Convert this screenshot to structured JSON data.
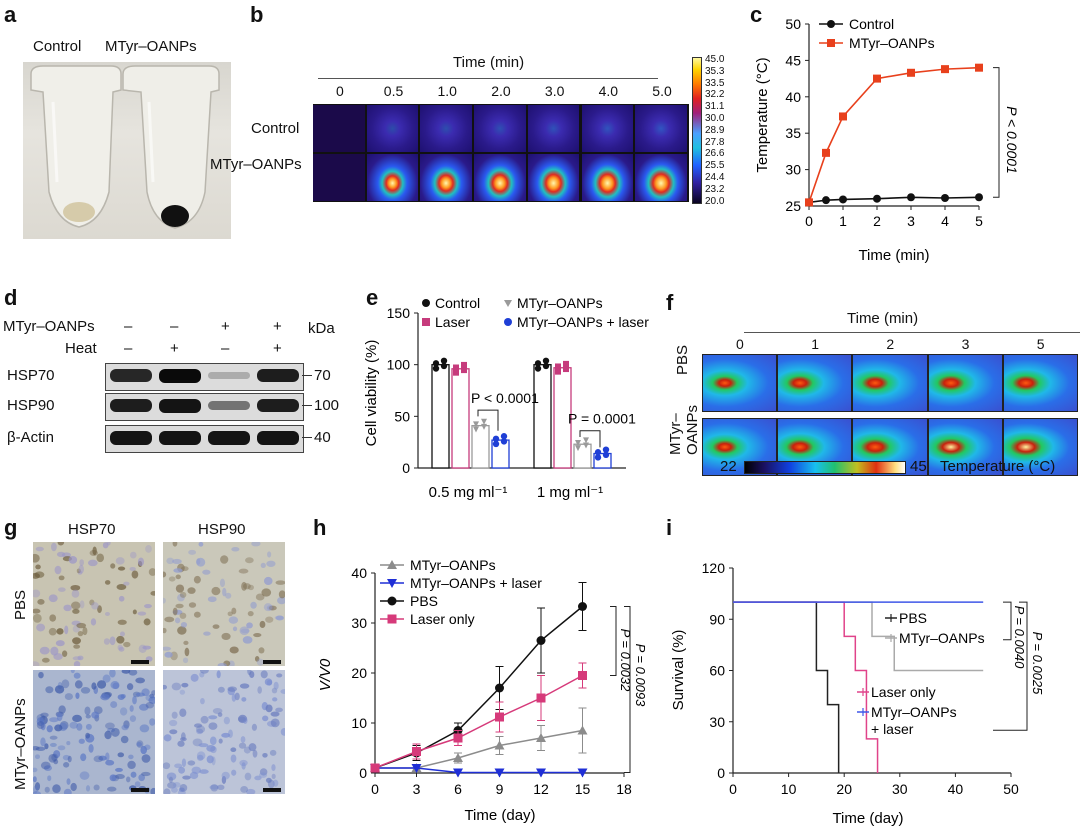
{
  "panel_labels": {
    "a": "a",
    "b": "b",
    "c": "c",
    "d": "d",
    "e": "e",
    "f": "f",
    "g": "g",
    "h": "h",
    "i": "i"
  },
  "panel_a": {
    "control_label": "Control",
    "mtyr_label": "MTyr–OANPs"
  },
  "panel_b": {
    "time_title": "Time (min)",
    "times": [
      "0",
      "0.5",
      "1.0",
      "2.0",
      "3.0",
      "4.0",
      "5.0"
    ],
    "row_labels": [
      "Control",
      "MTyr–OANPs"
    ],
    "scale_ticks": [
      "45.0",
      "35.3",
      "33.5",
      "32.2",
      "31.1",
      "30.0",
      "28.9",
      "27.8",
      "26.6",
      "25.5",
      "24.4",
      "23.2",
      "20.0"
    ],
    "control_intensity": [
      0.05,
      0.35,
      0.4,
      0.45,
      0.5,
      0.55,
      0.6
    ],
    "mtyr_intensity": [
      0.05,
      0.55,
      0.7,
      0.8,
      0.9,
      0.95,
      1.0
    ]
  },
  "panel_d": {
    "row1_label": "MTyr–OANPs",
    "row2_label": "Heat",
    "row1_signs": [
      "–",
      "–",
      "+",
      "+"
    ],
    "row2_signs": [
      "–",
      "+",
      "–",
      "+"
    ],
    "kda_label": "kDa",
    "blots": [
      {
        "name": "HSP70",
        "kda": "70",
        "intensity": [
          0.85,
          1.0,
          0.15,
          0.9
        ]
      },
      {
        "name": "HSP90",
        "kda": "100",
        "intensity": [
          0.9,
          0.95,
          0.45,
          0.9
        ]
      },
      {
        "name": "β-Actin",
        "kda": "40",
        "intensity": [
          0.95,
          0.95,
          0.95,
          0.95
        ]
      }
    ]
  },
  "panel_f": {
    "time_title": "Time (min)",
    "times": [
      "0",
      "1",
      "2",
      "3",
      "5"
    ],
    "row_labels": [
      "PBS",
      "MTyr–\nOANPs"
    ],
    "row_label_line1": "PBS",
    "row_label_line2a": "MTyr–",
    "row_label_line2b": "OANPs",
    "scale_min": "22",
    "scale_max": "45",
    "scale_title": "Temperature (°C)",
    "pbs_intensity": [
      0.35,
      0.5,
      0.55,
      0.6,
      0.6
    ],
    "mtyr_intensity": [
      0.4,
      0.6,
      0.75,
      0.9,
      1.0
    ]
  },
  "panel_g": {
    "col_labels": [
      "HSP70",
      "HSP90"
    ],
    "row_labels": [
      "PBS",
      "MTyr–OANPs"
    ]
  },
  "chart_data": [
    {
      "id": "c",
      "type": "line",
      "xlabel": "Time (min)",
      "ylabel": "Temperature (°C)",
      "xlim": [
        0,
        5
      ],
      "ylim": [
        25,
        50
      ],
      "xticks": [
        "0",
        "1",
        "2",
        "3",
        "4",
        "5"
      ],
      "yticks": [
        "25",
        "30",
        "35",
        "40",
        "45",
        "50"
      ],
      "x": [
        0,
        0.5,
        1,
        2,
        3,
        4,
        5
      ],
      "series": [
        {
          "name": "Control",
          "color": "#111111",
          "marker": "circle",
          "values": [
            25.5,
            25.8,
            25.9,
            26.0,
            26.2,
            26.1,
            26.2
          ]
        },
        {
          "name": "MTyr–OANPs",
          "color": "#e8401c",
          "marker": "square",
          "values": [
            25.5,
            32.3,
            37.3,
            42.5,
            43.3,
            43.8,
            44.0
          ]
        }
      ],
      "annotation": "P < 0.0001"
    },
    {
      "id": "e",
      "type": "bar",
      "ylabel": "Cell viability (%)",
      "ylim": [
        0,
        150
      ],
      "yticks": [
        "0",
        "50",
        "100",
        "150"
      ],
      "categories": [
        "0.5 mg ml⁻¹",
        "1 mg ml⁻¹"
      ],
      "series": [
        {
          "name": "Control",
          "color": "#111111",
          "values": [
            100,
            100
          ]
        },
        {
          "name": "Laser",
          "color": "#c63b7c",
          "values": [
            96,
            97
          ]
        },
        {
          "name": "MTyr–OANPs",
          "color": "#9a9a9a",
          "values": [
            41,
            23
          ]
        },
        {
          "name": "MTyr–OANPs + laser",
          "color": "#1f3fd6",
          "values": [
            27,
            14
          ]
        }
      ],
      "annotations": [
        "P < 0.0001",
        "P = 0.0001"
      ]
    },
    {
      "id": "h",
      "type": "line",
      "xlabel": "Time (day)",
      "ylabel": "V/V0",
      "xlim": [
        0,
        18
      ],
      "ylim": [
        0,
        40
      ],
      "xticks": [
        "0",
        "3",
        "6",
        "9",
        "12",
        "15",
        "18"
      ],
      "yticks": [
        "0",
        "10",
        "20",
        "30",
        "40"
      ],
      "x": [
        0,
        3,
        6,
        9,
        12,
        15
      ],
      "series": [
        {
          "name": "MTyr–OANPs",
          "color": "#8c8c8c",
          "marker": "triangle-up",
          "values": [
            1,
            1,
            3,
            5.5,
            7,
            8.5
          ],
          "err": [
            0,
            0.5,
            1,
            1.8,
            2.5,
            4.5
          ]
        },
        {
          "name": "MTyr–OANPs + laser",
          "color": "#1f2fd6",
          "marker": "triangle-down",
          "values": [
            1,
            1,
            0.1,
            0.1,
            0.1,
            0.1
          ],
          "err": [
            0,
            0,
            0,
            0,
            0,
            0
          ]
        },
        {
          "name": "PBS",
          "color": "#111111",
          "marker": "circle",
          "values": [
            1,
            4,
            8.5,
            17,
            26.5,
            33.3
          ],
          "err": [
            0,
            1.5,
            1.5,
            4.3,
            6.5,
            4.8
          ]
        },
        {
          "name": "Laser only",
          "color": "#d63a7a",
          "marker": "square",
          "values": [
            1,
            4.3,
            7,
            11.2,
            15,
            19.5
          ],
          "err": [
            0,
            1.5,
            1.5,
            3,
            4.5,
            2.5
          ]
        }
      ],
      "annotations": [
        "P = 0.0032",
        "P = 0.0093"
      ]
    },
    {
      "id": "i",
      "type": "line",
      "xlabel": "Time (day)",
      "ylabel": "Survival (%)",
      "xlim": [
        0,
        50
      ],
      "ylim": [
        0,
        120
      ],
      "xticks": [
        "0",
        "10",
        "20",
        "30",
        "40",
        "50"
      ],
      "yticks": [
        "0",
        "30",
        "60",
        "90",
        "120"
      ],
      "series": [
        {
          "name": "PBS",
          "color": "#222222",
          "steps": [
            [
              0,
              100
            ],
            [
              15,
              100
            ],
            [
              15,
              60
            ],
            [
              17,
              60
            ],
            [
              17,
              40
            ],
            [
              19,
              40
            ],
            [
              19,
              0
            ]
          ]
        },
        {
          "name": "MTyr–OANPs",
          "color": "#aaaaaa",
          "steps": [
            [
              0,
              100
            ],
            [
              25,
              100
            ],
            [
              25,
              80
            ],
            [
              29,
              80
            ],
            [
              29,
              60
            ],
            [
              45,
              60
            ]
          ]
        },
        {
          "name": "Laser only",
          "color": "#e0438a",
          "steps": [
            [
              0,
              100
            ],
            [
              20,
              100
            ],
            [
              20,
              80
            ],
            [
              22,
              80
            ],
            [
              22,
              60
            ],
            [
              24,
              60
            ],
            [
              24,
              20
            ],
            [
              26,
              20
            ],
            [
              26,
              0
            ]
          ]
        },
        {
          "name": "MTyr–OANPs\n+ laser",
          "color": "#3f57e8",
          "steps": [
            [
              0,
              100
            ],
            [
              45,
              100
            ]
          ]
        }
      ],
      "annotations": [
        "P = 0.0040",
        "P = 0.0025"
      ]
    }
  ]
}
